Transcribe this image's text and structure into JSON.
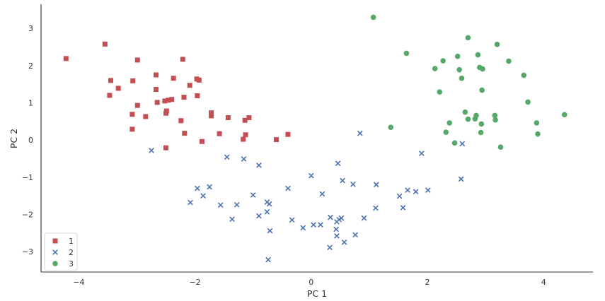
{
  "chart_data": {
    "type": "scatter",
    "xlabel": "PC 1",
    "ylabel": "PC 2",
    "xlim": [
      -4.65,
      4.85
    ],
    "ylim": [
      -3.55,
      3.65
    ],
    "xticks": [
      -4,
      -2,
      0,
      2,
      4
    ],
    "xtick_labels": [
      "−4",
      "−2",
      "0",
      "2",
      "4"
    ],
    "yticks": [
      -3,
      -2,
      -1,
      0,
      1,
      2,
      3
    ],
    "ytick_labels": [
      "−3",
      "−2",
      "−1",
      "0",
      "1",
      "2",
      "3"
    ],
    "grid": false,
    "legend_position": "lower-left",
    "series": [
      {
        "name": "1",
        "marker": "square",
        "color": "#c44e52",
        "points": [
          [
            -4.22,
            2.19
          ],
          [
            -3.55,
            2.58
          ],
          [
            -3.45,
            1.6
          ],
          [
            -3.47,
            1.2
          ],
          [
            -3.32,
            1.39
          ],
          [
            -3.07,
            1.59
          ],
          [
            -3.08,
            0.69
          ],
          [
            -3.08,
            0.29
          ],
          [
            -2.99,
            2.15
          ],
          [
            -2.99,
            0.93
          ],
          [
            -2.85,
            0.63
          ],
          [
            -2.67,
            1.75
          ],
          [
            -2.67,
            1.36
          ],
          [
            -2.65,
            1.01
          ],
          [
            -2.52,
            1.05
          ],
          [
            -2.5,
            0.72
          ],
          [
            -2.49,
            0.78
          ],
          [
            -2.46,
            1.07
          ],
          [
            -2.4,
            1.09
          ],
          [
            -2.37,
            1.66
          ],
          [
            -2.5,
            -0.21
          ],
          [
            -2.24,
            0.52
          ],
          [
            -2.21,
            2.17
          ],
          [
            -2.19,
            1.15
          ],
          [
            -2.18,
            0.18
          ],
          [
            -2.09,
            1.47
          ],
          [
            -1.97,
            1.64
          ],
          [
            -1.96,
            1.19
          ],
          [
            -1.93,
            1.61
          ],
          [
            -1.88,
            -0.04
          ],
          [
            -1.72,
            0.73
          ],
          [
            -1.72,
            0.65
          ],
          [
            -1.58,
            0.17
          ],
          [
            -1.43,
            0.6
          ],
          [
            -1.17,
            0.02
          ],
          [
            -1.14,
            0.53
          ],
          [
            -1.13,
            0.14
          ],
          [
            -1.07,
            0.6
          ],
          [
            -0.6,
            0.01
          ],
          [
            -0.4,
            0.15
          ]
        ]
      },
      {
        "name": "2",
        "marker": "x",
        "color": "#4c72b0",
        "points": [
          [
            -2.75,
            -0.28
          ],
          [
            -2.08,
            -1.68
          ],
          [
            -1.96,
            -1.3
          ],
          [
            -1.86,
            -1.5
          ],
          [
            -1.75,
            -1.26
          ],
          [
            -1.56,
            -1.75
          ],
          [
            -1.45,
            -0.46
          ],
          [
            -1.36,
            -2.13
          ],
          [
            -1.28,
            -1.74
          ],
          [
            -1.16,
            -0.51
          ],
          [
            -1.0,
            -1.48
          ],
          [
            -0.9,
            -0.68
          ],
          [
            -0.9,
            -2.04
          ],
          [
            -0.76,
            -1.67
          ],
          [
            -0.76,
            -1.93
          ],
          [
            -0.72,
            -1.72
          ],
          [
            -0.71,
            -2.44
          ],
          [
            -0.74,
            -3.22
          ],
          [
            -0.4,
            -1.3
          ],
          [
            -0.33,
            -2.15
          ],
          [
            -0.14,
            -2.36
          ],
          [
            0.0,
            -0.96
          ],
          [
            0.04,
            -2.28
          ],
          [
            0.16,
            -2.28
          ],
          [
            0.19,
            -1.45
          ],
          [
            0.32,
            -2.89
          ],
          [
            0.33,
            -2.08
          ],
          [
            0.43,
            -2.4
          ],
          [
            0.44,
            -2.58
          ],
          [
            0.44,
            -2.2
          ],
          [
            0.46,
            -0.63
          ],
          [
            0.48,
            -2.14
          ],
          [
            0.52,
            -2.1
          ],
          [
            0.54,
            -1.09
          ],
          [
            0.57,
            -2.75
          ],
          [
            0.72,
            -1.19
          ],
          [
            0.76,
            -2.55
          ],
          [
            0.84,
            0.18
          ],
          [
            0.91,
            -2.1
          ],
          [
            1.11,
            -1.83
          ],
          [
            1.12,
            -1.2
          ],
          [
            1.52,
            -1.51
          ],
          [
            1.58,
            -1.82
          ],
          [
            1.66,
            -1.35
          ],
          [
            1.8,
            -1.39
          ],
          [
            1.9,
            -0.36
          ],
          [
            2.01,
            -1.35
          ],
          [
            2.58,
            -1.05
          ],
          [
            2.6,
            -0.1
          ]
        ]
      },
      {
        "name": "3",
        "marker": "circle",
        "color": "#55a868",
        "points": [
          [
            1.07,
            3.3
          ],
          [
            1.37,
            0.34
          ],
          [
            1.64,
            2.33
          ],
          [
            2.13,
            1.92
          ],
          [
            2.21,
            1.29
          ],
          [
            2.27,
            2.13
          ],
          [
            2.32,
            0.21
          ],
          [
            2.38,
            0.46
          ],
          [
            2.47,
            -0.08
          ],
          [
            2.52,
            2.25
          ],
          [
            2.55,
            1.89
          ],
          [
            2.59,
            1.66
          ],
          [
            2.65,
            0.75
          ],
          [
            2.7,
            2.75
          ],
          [
            2.7,
            0.56
          ],
          [
            2.82,
            0.57
          ],
          [
            2.84,
            0.66
          ],
          [
            2.87,
            2.29
          ],
          [
            2.9,
            1.95
          ],
          [
            2.92,
            0.2
          ],
          [
            2.93,
            0.43
          ],
          [
            2.94,
            1.34
          ],
          [
            2.95,
            1.91
          ],
          [
            3.16,
            0.66
          ],
          [
            3.17,
            0.54
          ],
          [
            3.2,
            2.57
          ],
          [
            3.26,
            -0.19
          ],
          [
            3.4,
            2.12
          ],
          [
            3.66,
            1.74
          ],
          [
            3.73,
            1.02
          ],
          [
            3.88,
            0.46
          ],
          [
            3.9,
            0.16
          ],
          [
            4.36,
            0.68
          ]
        ]
      }
    ]
  }
}
